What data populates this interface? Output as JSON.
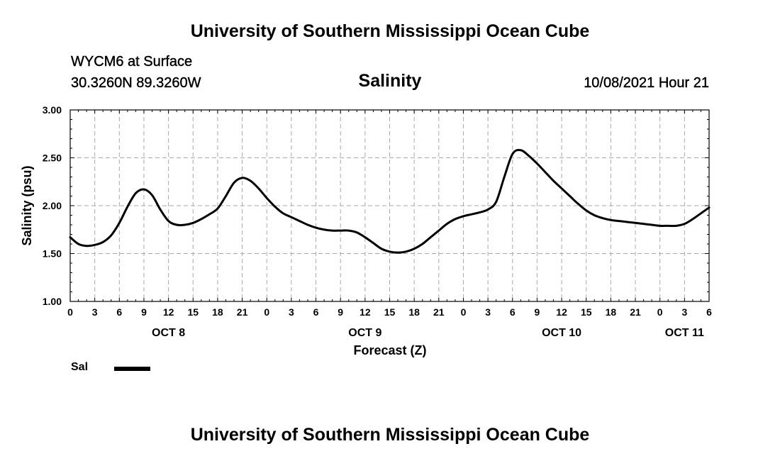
{
  "header": {
    "title": "University of Southern Mississippi Ocean Cube",
    "station": "WYCM6 at Surface",
    "coords": "30.3260N  89.3260W",
    "chart_title": "Salinity",
    "run_time": "10/08/2021 Hour 21"
  },
  "footer": {
    "title": "University of Southern Mississippi Ocean Cube"
  },
  "legend": {
    "label": "Sal",
    "color": "#000000"
  },
  "chart_data": {
    "type": "line",
    "title": "Salinity",
    "xlabel": "Forecast (Z)",
    "ylabel": "Salinity (psu)",
    "xlim": [
      0,
      78
    ],
    "ylim": [
      1.0,
      3.0
    ],
    "yticks": [
      1.0,
      1.5,
      2.0,
      2.5,
      3.0
    ],
    "ytick_labels": [
      "1.00",
      "1.50",
      "2.00",
      "2.50",
      "3.00"
    ],
    "xticks": [
      0,
      3,
      6,
      9,
      12,
      15,
      18,
      21,
      24,
      27,
      30,
      33,
      36,
      39,
      42,
      45,
      48,
      51,
      54,
      57,
      60,
      63,
      66,
      69,
      72,
      75,
      78
    ],
    "xtick_labels": [
      "0",
      "3",
      "6",
      "9",
      "12",
      "15",
      "18",
      "21",
      "0",
      "3",
      "6",
      "9",
      "12",
      "15",
      "18",
      "21",
      "0",
      "3",
      "6",
      "9",
      "12",
      "15",
      "18",
      "21",
      "0",
      "3",
      "6"
    ],
    "date_labels": [
      {
        "x": 12,
        "label": "OCT 8"
      },
      {
        "x": 36,
        "label": "OCT 9"
      },
      {
        "x": 60,
        "label": "OCT 10"
      },
      {
        "x": 75,
        "label": "OCT 11"
      }
    ],
    "grid": true,
    "series": [
      {
        "name": "Sal",
        "color": "#000000",
        "x": [
          0,
          1,
          2,
          3,
          4,
          5,
          6,
          7,
          8,
          9,
          10,
          11,
          12,
          13,
          14,
          15,
          16,
          17,
          18,
          19,
          20,
          21,
          22,
          23,
          24,
          25,
          26,
          27,
          28,
          29,
          30,
          31,
          32,
          33,
          34,
          35,
          36,
          37,
          38,
          39,
          40,
          41,
          42,
          43,
          44,
          45,
          46,
          47,
          48,
          49,
          50,
          51,
          52,
          53,
          54,
          55,
          56,
          57,
          58,
          59,
          60,
          61,
          62,
          63,
          64,
          65,
          66,
          67,
          68,
          69,
          70,
          71,
          72,
          73,
          74,
          75,
          76,
          77,
          78
        ],
        "values": [
          1.67,
          1.6,
          1.58,
          1.59,
          1.62,
          1.69,
          1.82,
          1.99,
          2.13,
          2.17,
          2.11,
          1.96,
          1.84,
          1.8,
          1.8,
          1.82,
          1.86,
          1.91,
          1.97,
          2.1,
          2.24,
          2.29,
          2.26,
          2.18,
          2.08,
          1.99,
          1.92,
          1.88,
          1.84,
          1.8,
          1.77,
          1.75,
          1.74,
          1.74,
          1.74,
          1.72,
          1.67,
          1.61,
          1.55,
          1.52,
          1.51,
          1.52,
          1.55,
          1.6,
          1.67,
          1.74,
          1.81,
          1.86,
          1.89,
          1.91,
          1.93,
          1.96,
          2.04,
          2.3,
          2.54,
          2.58,
          2.52,
          2.44,
          2.35,
          2.26,
          2.18,
          2.1,
          2.02,
          1.95,
          1.9,
          1.87,
          1.85,
          1.84,
          1.83,
          1.82,
          1.81,
          1.8,
          1.79,
          1.79,
          1.79,
          1.81,
          1.86,
          1.92,
          1.98
        ]
      }
    ]
  }
}
